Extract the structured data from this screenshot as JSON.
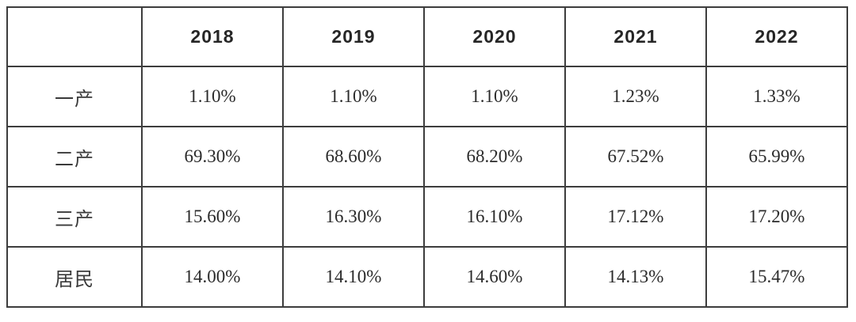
{
  "table": {
    "columns": [
      "",
      "2018",
      "2019",
      "2020",
      "2021",
      "2022"
    ],
    "rows": [
      {
        "label": "一产",
        "values": [
          "1.10%",
          "1.10%",
          "1.10%",
          "1.23%",
          "1.33%"
        ]
      },
      {
        "label": "二产",
        "values": [
          "69.30%",
          "68.60%",
          "68.20%",
          "67.52%",
          "65.99%"
        ]
      },
      {
        "label": "三产",
        "values": [
          "15.60%",
          "16.30%",
          "16.10%",
          "17.12%",
          "17.20%"
        ]
      },
      {
        "label": "居民",
        "values": [
          "14.00%",
          "14.10%",
          "14.60%",
          "14.13%",
          "15.47%"
        ]
      }
    ]
  },
  "colors": {
    "grid_border": "#3d3d3d",
    "header_text": "#262626",
    "value_text": "#2b2b2b",
    "background": "#ffffff"
  },
  "chart_data": {
    "type": "table",
    "categories": [
      "2018",
      "2019",
      "2020",
      "2021",
      "2022"
    ],
    "series": [
      {
        "name": "一产",
        "values": [
          1.1,
          1.1,
          1.1,
          1.23,
          1.33
        ]
      },
      {
        "name": "二产",
        "values": [
          69.3,
          68.6,
          68.2,
          67.52,
          65.99
        ]
      },
      {
        "name": "三产",
        "values": [
          15.6,
          16.3,
          16.1,
          17.12,
          17.2
        ]
      },
      {
        "name": "居民",
        "values": [
          14.0,
          14.1,
          14.6,
          14.13,
          15.47
        ]
      }
    ],
    "unit": "%",
    "grid": true,
    "legend_position": "none"
  }
}
